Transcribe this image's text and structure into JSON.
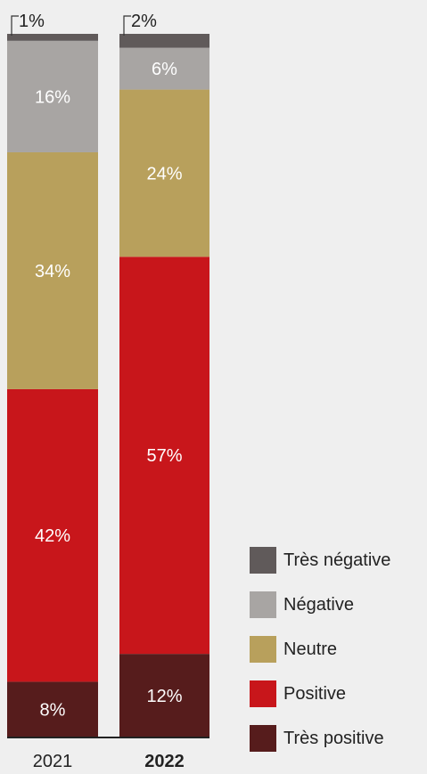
{
  "chart_data": {
    "type": "bar",
    "stacked": true,
    "orientation": "vertical",
    "categories": [
      "2021",
      "2022"
    ],
    "highlighted_category": "2022",
    "series": [
      {
        "name": "Très positive",
        "color": "#561c1c",
        "values": [
          8,
          12
        ],
        "labels": [
          "8%",
          "12%"
        ]
      },
      {
        "name": "Positive",
        "color": "#c8161b",
        "values": [
          42,
          57
        ],
        "labels": [
          "42%",
          "57%"
        ]
      },
      {
        "name": "Neutre",
        "color": "#b8a05c",
        "values": [
          34,
          24
        ],
        "labels": [
          "34%",
          "24%"
        ]
      },
      {
        "name": "Négative",
        "color": "#a8a5a3",
        "values": [
          16,
          6
        ],
        "labels": [
          "16%",
          "6%"
        ]
      },
      {
        "name": "Très négative",
        "color": "#605a5a",
        "values": [
          1,
          2
        ],
        "labels": [
          "1%",
          "2%"
        ]
      }
    ],
    "ylim": [
      0,
      100
    ],
    "grid": false,
    "legend_position": "bottom-right"
  }
}
